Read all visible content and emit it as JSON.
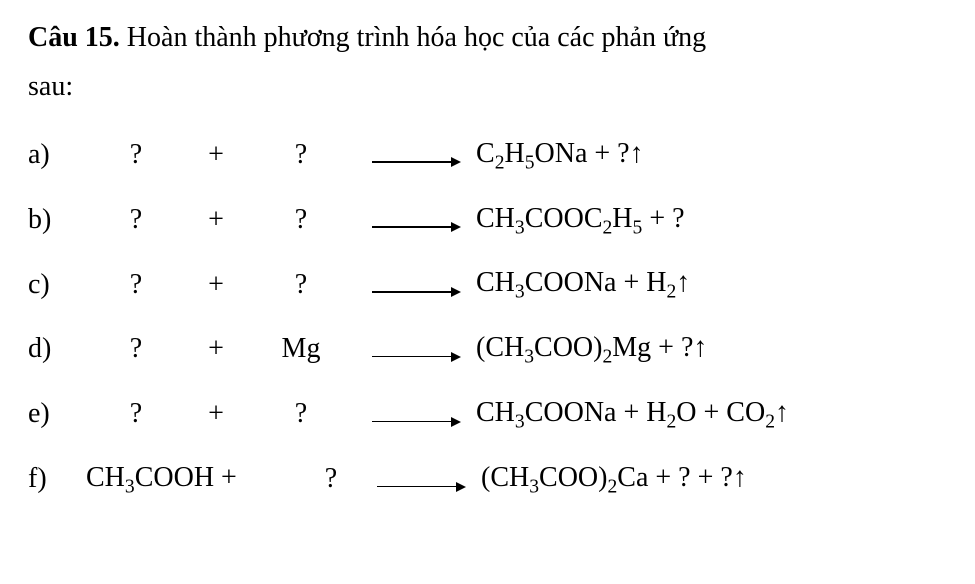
{
  "prompt": {
    "label": "Câu 15.",
    "text_line1": " Hoàn thành phương trình hóa học của các phản ứng",
    "text_line2": "sau:"
  },
  "typography": {
    "font_family": "Times New Roman",
    "font_size_pt": 21,
    "color": "#000000",
    "background": "#ffffff"
  },
  "equations": [
    {
      "label": "a)",
      "reagent1": "?",
      "plus": "+",
      "reagent2": "?",
      "rhs_html": "C<sub>2</sub>H<sub>5</sub>ONa + ?↑"
    },
    {
      "label": "b)",
      "reagent1": "?",
      "plus": "+",
      "reagent2": "?",
      "rhs_html": "CH<sub>3</sub>COOC<sub>2</sub>H<sub>5</sub> + ?"
    },
    {
      "label": "c)",
      "reagent1": "?",
      "plus": "+",
      "reagent2": "?",
      "rhs_html": "CH<sub>3</sub>COONa + H<sub>2</sub>↑"
    },
    {
      "label": "d)",
      "reagent1": "?",
      "plus": "+",
      "reagent2": "Mg",
      "rhs_html": "(CH<sub>3</sub>COO)<sub>2</sub>Mg + ?↑"
    },
    {
      "label": "e)",
      "reagent1": "?",
      "plus": "+",
      "reagent2": "?",
      "rhs_html": "CH<sub>3</sub>COONa + H<sub>2</sub>O + CO<sub>2</sub>↑"
    },
    {
      "label": "f)",
      "reagent1_html": "CH<sub>3</sub>COOH +",
      "reagent2": "?",
      "rhs_html": "(CH<sub>3</sub>COO)<sub>2</sub>Ca + ? + ?↑"
    }
  ]
}
